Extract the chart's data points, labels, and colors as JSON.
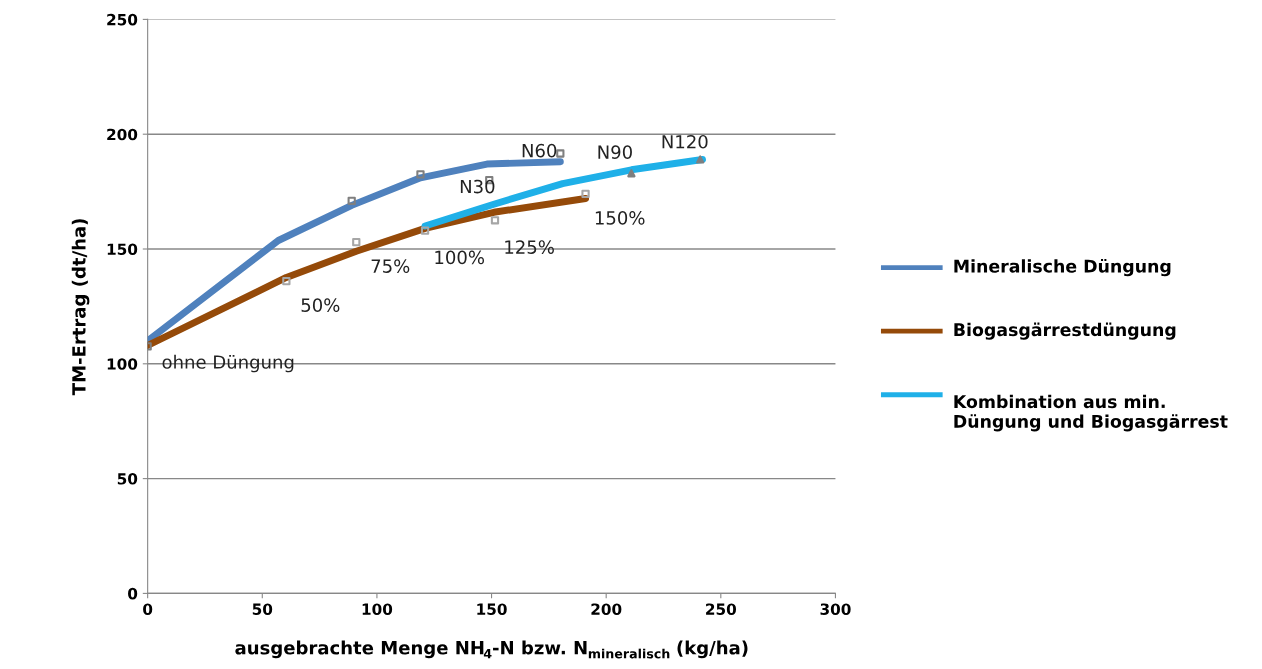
{
  "chart_data": {
    "type": "line",
    "xlabel": "ausgebrachte Menge NH$_{4}$-N bzw. N$_{mineralisch}$ (kg/ha)",
    "ylabel": "TM-Ertrag (dt/ha)",
    "xlim": [
      0,
      300
    ],
    "xticks": [
      0,
      50,
      100,
      150,
      200,
      250,
      300
    ],
    "ylim": [
      0,
      250
    ],
    "yticks": [
      0,
      50,
      100,
      150,
      200,
      250
    ],
    "grid": "y",
    "legend": "right",
    "series": [
      {
        "name": "Mineralische Düngung",
        "color": "#4f81bd",
        "x": [
          0,
          57,
          89,
          119,
          148,
          180
        ],
        "values": [
          110,
          153.7,
          169,
          181,
          187,
          188
        ]
      },
      {
        "name": "Biogasgärrestdüngung",
        "color": "#954a09",
        "x": [
          0,
          60.5,
          91,
          121,
          151,
          191
        ],
        "values": [
          108,
          137.6,
          149,
          159,
          166,
          172
        ]
      },
      {
        "name": "Kombination aus min. Düngung und Biogasgärrest",
        "color": "#1fb0e8",
        "x": [
          121,
          151,
          181,
          211,
          242
        ],
        "values": [
          160,
          169.5,
          178.5,
          184.5,
          189
        ]
      },
      {
        "type": "scatter",
        "marker": "square",
        "color": "#7f7f7f",
        "x": [
          0,
          89,
          119,
          149,
          180
        ],
        "values": [
          107.6,
          171,
          182.5,
          180,
          191.6
        ]
      },
      {
        "type": "scatter",
        "marker": "square",
        "color": "#a6a6a6",
        "x": [
          60.5,
          91,
          121,
          151.5,
          191
        ],
        "values": [
          136,
          153,
          158,
          162.5,
          174
        ]
      },
      {
        "type": "scatter",
        "marker": "triangle",
        "color": "#7f7f7f",
        "x": [
          211,
          241
        ],
        "values": [
          183,
          189
        ]
      }
    ],
    "annotations": [
      {
        "text": "ohne Düngung",
        "x": 0,
        "y": 107.6
      },
      {
        "text": "50%",
        "x": 60.5,
        "y": 136
      },
      {
        "text": "75%",
        "x": 91,
        "y": 153
      },
      {
        "text": "100%",
        "x": 121,
        "y": 158
      },
      {
        "text": "125%",
        "x": 151.5,
        "y": 162.5
      },
      {
        "text": "150%",
        "x": 191,
        "y": 174
      },
      {
        "text": "N30",
        "x": 151,
        "y": 169.5
      },
      {
        "text": "N60",
        "x": 181,
        "y": 178.5
      },
      {
        "text": "N90",
        "x": 211,
        "y": 184.5
      },
      {
        "text": "N120",
        "x": 242,
        "y": 189
      }
    ]
  }
}
